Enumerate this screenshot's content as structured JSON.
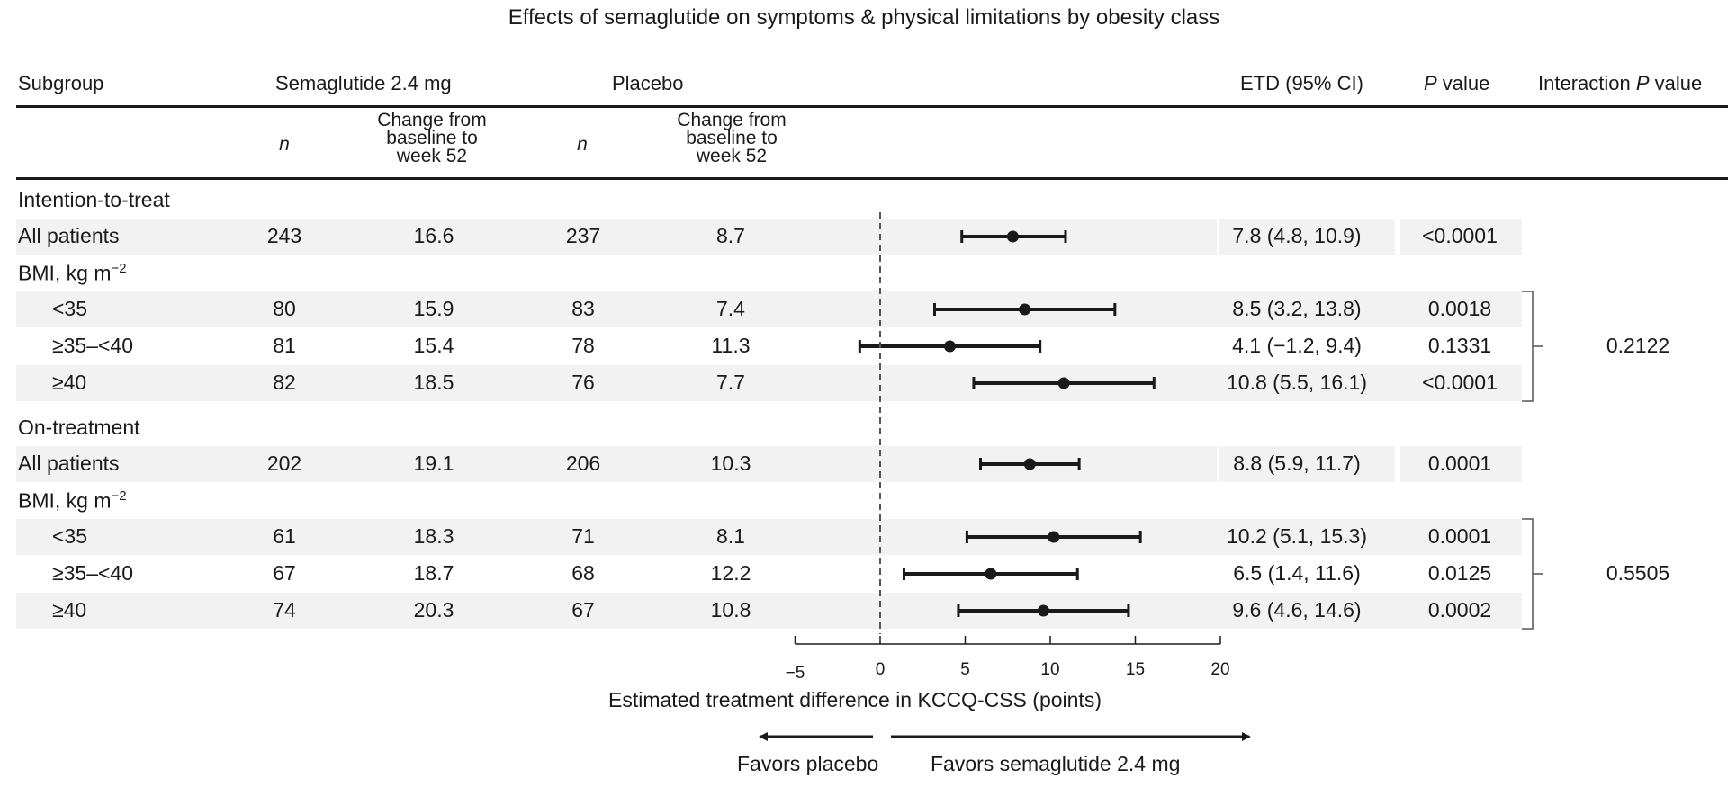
{
  "chart_data": {
    "type": "forest",
    "title": "Effects of semaglutide on symptoms & physical limitations by obesity class",
    "columns": {
      "subgroup": "Subgroup",
      "sema": "Semaglutide 2.4 mg",
      "placebo": "Placebo",
      "etd": "ETD (95% CI)",
      "p_prefix": "P",
      "p_suffix": " value",
      "interaction_prefix": "Interaction ",
      "interaction_p": "P",
      "interaction_suffix": " value",
      "n": "n",
      "change_line1": "Change from",
      "change_line2": "baseline to",
      "change_line3": "week 52"
    },
    "xlabel": "Estimated treatment difference in KCCQ-CSS (points)",
    "xlim": [
      -5,
      20
    ],
    "xticks": [
      "−5",
      "0",
      "5",
      "10",
      "15",
      "20"
    ],
    "xtick_values": [
      -5,
      0,
      5,
      10,
      15,
      20
    ],
    "reference_line": 0,
    "favors_left": "Favors placebo",
    "favors_right": "Favors semaglutide 2.4 mg",
    "sections": [
      {
        "label": "Intention-to-treat",
        "rows": [
          {
            "label": "All patients",
            "n_sema": "243",
            "chg_sema": "16.6",
            "n_pbo": "237",
            "chg_pbo": "8.7",
            "etd": 7.8,
            "lo": 4.8,
            "hi": 10.9,
            "etd_text": "7.8 (4.8, 10.9)",
            "p": "<0.0001"
          }
        ],
        "bmi_label": "BMI, kg m",
        "bmi_sup": "−2",
        "bmi_rows": [
          {
            "label": "<35",
            "n_sema": "80",
            "chg_sema": "15.9",
            "n_pbo": "83",
            "chg_pbo": "7.4",
            "etd": 8.5,
            "lo": 3.2,
            "hi": 13.8,
            "etd_text": "8.5 (3.2, 13.8)",
            "p": "0.0018"
          },
          {
            "label": "≥35–<40",
            "n_sema": "81",
            "chg_sema": "15.4",
            "n_pbo": "78",
            "chg_pbo": "11.3",
            "etd": 4.1,
            "lo": -1.2,
            "hi": 9.4,
            "etd_text": "4.1 (−1.2, 9.4)",
            "p": "0.1331"
          },
          {
            "label": "≥40",
            "n_sema": "82",
            "chg_sema": "18.5",
            "n_pbo": "76",
            "chg_pbo": "7.7",
            "etd": 10.8,
            "lo": 5.5,
            "hi": 16.1,
            "etd_text": "10.8 (5.5, 16.1)",
            "p": "<0.0001"
          }
        ],
        "interaction_p": "0.2122"
      },
      {
        "label": "On-treatment",
        "rows": [
          {
            "label": "All patients",
            "n_sema": "202",
            "chg_sema": "19.1",
            "n_pbo": "206",
            "chg_pbo": "10.3",
            "etd": 8.8,
            "lo": 5.9,
            "hi": 11.7,
            "etd_text": "8.8 (5.9, 11.7)",
            "p": "0.0001"
          }
        ],
        "bmi_label": "BMI, kg m",
        "bmi_sup": "−2",
        "bmi_rows": [
          {
            "label": "<35",
            "n_sema": "61",
            "chg_sema": "18.3",
            "n_pbo": "71",
            "chg_pbo": "8.1",
            "etd": 10.2,
            "lo": 5.1,
            "hi": 15.3,
            "etd_text": "10.2 (5.1, 15.3)",
            "p": "0.0001"
          },
          {
            "label": "≥35–<40",
            "n_sema": "67",
            "chg_sema": "18.7",
            "n_pbo": "68",
            "chg_pbo": "12.2",
            "etd": 6.5,
            "lo": 1.4,
            "hi": 11.6,
            "etd_text": "6.5 (1.4, 11.6)",
            "p": "0.0125"
          },
          {
            "label": "≥40",
            "n_sema": "74",
            "chg_sema": "20.3",
            "n_pbo": "67",
            "chg_pbo": "10.8",
            "etd": 9.6,
            "lo": 4.6,
            "hi": 14.6,
            "etd_text": "9.6 (4.6, 14.6)",
            "p": "0.0002"
          }
        ],
        "interaction_p": "0.5505"
      }
    ]
  }
}
